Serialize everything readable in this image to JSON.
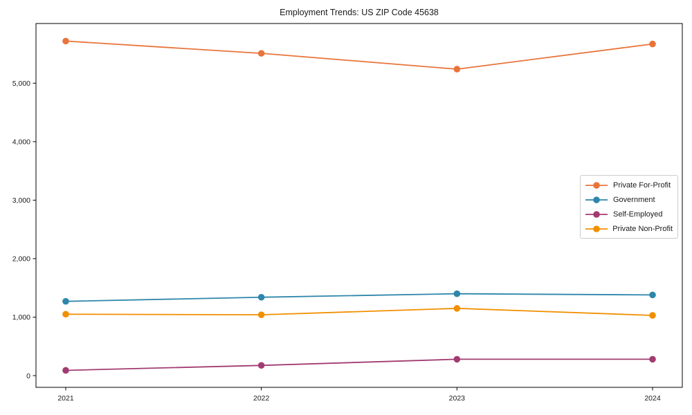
{
  "chart_data": {
    "type": "line",
    "title": "Employment Trends: US ZIP Code 45638",
    "xlabel": "",
    "ylabel": "",
    "x_categories": [
      "2021",
      "2022",
      "2023",
      "2024"
    ],
    "series": [
      {
        "name": "Private For-Profit",
        "color": "#e8743b",
        "values": [
          5720,
          5510,
          5240,
          5670
        ]
      },
      {
        "name": "Government",
        "color": "#2e86ab",
        "values": [
          1270,
          1340,
          1400,
          1380
        ]
      },
      {
        "name": "Self-Employed",
        "color": "#a23b72",
        "values": [
          90,
          175,
          280,
          280
        ]
      },
      {
        "name": "Private Non-Profit",
        "color": "#f18f01",
        "values": [
          1050,
          1040,
          1150,
          1030
        ]
      }
    ],
    "ylim": [
      -200,
      6020
    ],
    "yticks": [
      0,
      1000,
      2000,
      3000,
      4000,
      5000
    ],
    "ytick_labels": [
      "0",
      "1,000",
      "2,000",
      "3,000",
      "4,000",
      "5,000"
    ],
    "grid": false,
    "marker": "circle",
    "legend": {
      "position": "center-right",
      "border_color": "#cccccc"
    },
    "axis_color": "#000000",
    "tick_label_color": "#1a1a1a"
  }
}
